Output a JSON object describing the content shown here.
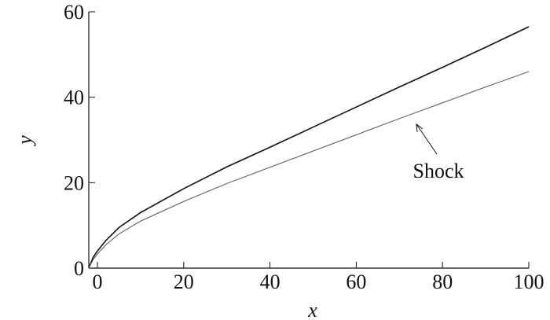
{
  "chart_data": {
    "type": "line",
    "x_label": "x",
    "y_label": "y",
    "x": [
      -2,
      -1,
      0,
      2,
      5,
      10,
      20,
      30,
      40,
      50,
      60,
      70,
      80,
      90,
      100
    ],
    "series": [
      {
        "color": "#111111",
        "values": [
          0,
          2.5,
          4,
          6.5,
          9.5,
          13,
          18.6,
          23.7,
          28.3,
          33,
          37.7,
          42.4,
          47,
          51.7,
          56.5
        ]
      },
      {
        "color": "#555555",
        "values": [
          0,
          2,
          3.3,
          5.5,
          8,
          11,
          15.6,
          19.8,
          23.6,
          27.4,
          31.2,
          35,
          38.7,
          42.4,
          46
        ]
      }
    ],
    "annotation": "Shock",
    "xlim": [
      -2,
      100
    ],
    "xticks": [
      0,
      20,
      40,
      60,
      80,
      100
    ],
    "ylim": [
      0,
      60
    ],
    "yticks": [
      0,
      20,
      40,
      60
    ],
    "grid": false
  }
}
